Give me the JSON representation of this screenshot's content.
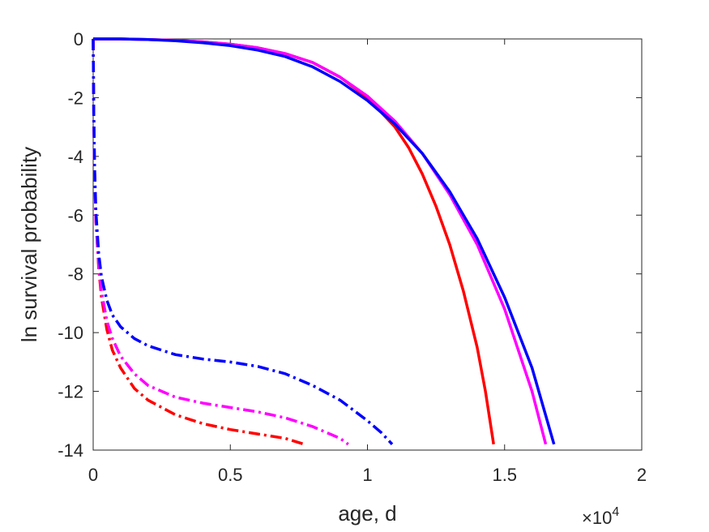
{
  "chart_data": {
    "type": "line",
    "xlabel": "age, d",
    "ylabel": "ln survival probability",
    "x_exponent_label": "×10",
    "x_exponent_power": "4",
    "xlim": [
      0,
      20000
    ],
    "ylim": [
      -14,
      0
    ],
    "xticks": [
      0,
      5000,
      10000,
      15000,
      20000
    ],
    "xtick_labels": [
      "0",
      "0.5",
      "1",
      "1.5",
      "2"
    ],
    "yticks": [
      0,
      -2,
      -4,
      -6,
      -8,
      -10,
      -12,
      -14
    ],
    "ytick_labels": [
      "0",
      "-2",
      "-4",
      "-6",
      "-8",
      "-10",
      "-12",
      "-14"
    ],
    "grid": false,
    "legend": "none",
    "series": [
      {
        "color": "#ff0000",
        "style": "solid",
        "x": [
          0,
          1000,
          2000,
          3000,
          4000,
          5000,
          6000,
          7000,
          8000,
          9000,
          10000,
          11000,
          11500,
          12000,
          12500,
          13000,
          13500,
          14000,
          14300,
          14600
        ],
        "y": [
          0,
          0,
          -0.02,
          -0.05,
          -0.1,
          -0.18,
          -0.3,
          -0.5,
          -0.8,
          -1.3,
          -2.0,
          -3.0,
          -3.7,
          -4.6,
          -5.7,
          -7.0,
          -8.6,
          -10.5,
          -12.0,
          -13.8
        ]
      },
      {
        "color": "#ff00ff",
        "style": "solid",
        "x": [
          0,
          1000,
          2000,
          3000,
          4000,
          5000,
          6000,
          7000,
          8000,
          9000,
          10000,
          11000,
          12000,
          13000,
          14000,
          15000,
          16000,
          16500
        ],
        "y": [
          0,
          0,
          -0.02,
          -0.05,
          -0.1,
          -0.18,
          -0.3,
          -0.5,
          -0.8,
          -1.3,
          -1.95,
          -2.8,
          -3.9,
          -5.3,
          -7.0,
          -9.2,
          -12.0,
          -13.8
        ]
      },
      {
        "color": "#0000ff",
        "style": "solid",
        "x": [
          0,
          1000,
          2000,
          3000,
          4000,
          5000,
          6000,
          7000,
          8000,
          9000,
          10000,
          11000,
          12000,
          13000,
          14000,
          15000,
          16000,
          16800
        ],
        "y": [
          0,
          0,
          -0.02,
          -0.06,
          -0.13,
          -0.23,
          -0.38,
          -0.6,
          -0.95,
          -1.45,
          -2.1,
          -2.9,
          -3.9,
          -5.2,
          -6.8,
          -8.8,
          -11.2,
          -13.8
        ]
      },
      {
        "color": "#ff0000",
        "style": "dashdot",
        "x": [
          0,
          20,
          50,
          100,
          200,
          300,
          500,
          700,
          1000,
          1500,
          2000,
          3000,
          4000,
          5000,
          6000,
          7000,
          7700
        ],
        "y": [
          0,
          -2.5,
          -4.5,
          -6.2,
          -7.8,
          -8.8,
          -9.9,
          -10.6,
          -11.2,
          -11.9,
          -12.3,
          -12.8,
          -13.1,
          -13.3,
          -13.45,
          -13.6,
          -13.8
        ]
      },
      {
        "color": "#ff00ff",
        "style": "dashdot",
        "x": [
          0,
          20,
          50,
          100,
          200,
          300,
          500,
          700,
          1000,
          1500,
          2000,
          3000,
          4000,
          5000,
          6000,
          7000,
          8000,
          9000,
          9300
        ],
        "y": [
          0,
          -2.5,
          -4.5,
          -6.2,
          -7.7,
          -8.6,
          -9.6,
          -10.2,
          -10.8,
          -11.4,
          -11.8,
          -12.2,
          -12.4,
          -12.55,
          -12.7,
          -12.9,
          -13.2,
          -13.6,
          -13.8
        ]
      },
      {
        "color": "#0000ff",
        "style": "dashdot",
        "x": [
          0,
          20,
          50,
          100,
          200,
          300,
          500,
          700,
          1000,
          1500,
          2000,
          3000,
          4000,
          5000,
          6000,
          7000,
          8000,
          9000,
          10000,
          10500,
          10900
        ],
        "y": [
          0,
          -2.5,
          -4.3,
          -5.9,
          -7.3,
          -8.1,
          -8.9,
          -9.4,
          -9.8,
          -10.2,
          -10.45,
          -10.75,
          -10.9,
          -11.0,
          -11.15,
          -11.4,
          -11.8,
          -12.3,
          -13.0,
          -13.4,
          -13.8
        ]
      }
    ]
  }
}
